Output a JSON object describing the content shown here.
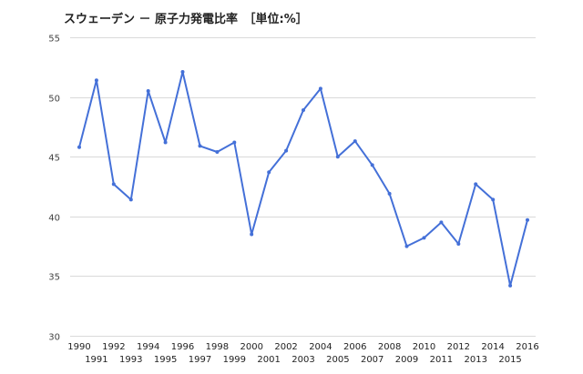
{
  "chart_data": {
    "type": "line",
    "title": "スウェーデン － 原子力発電比率　［単位:%］",
    "xlabel": "",
    "ylabel": "",
    "categories": [
      "1990",
      "1991",
      "1992",
      "1993",
      "1994",
      "1995",
      "1996",
      "1997",
      "1998",
      "1999",
      "2000",
      "2001",
      "2002",
      "2003",
      "2004",
      "2005",
      "2006",
      "2007",
      "2008",
      "2009",
      "2010",
      "2011",
      "2012",
      "2013",
      "2014",
      "2015",
      "2016"
    ],
    "series": [
      {
        "values": [
          45.8,
          51.4,
          42.7,
          41.4,
          50.5,
          46.2,
          52.1,
          45.9,
          45.4,
          46.2,
          38.5,
          43.7,
          45.5,
          48.9,
          50.7,
          45.0,
          46.3,
          44.3,
          41.9,
          37.5,
          38.2,
          39.5,
          37.7,
          42.7,
          41.4,
          34.2,
          39.7
        ],
        "color": "#4470d8"
      }
    ],
    "ylim": [
      30,
      55
    ],
    "yticks": [
      30,
      35,
      40,
      45,
      50,
      55
    ],
    "grid": true,
    "legend": "none"
  }
}
